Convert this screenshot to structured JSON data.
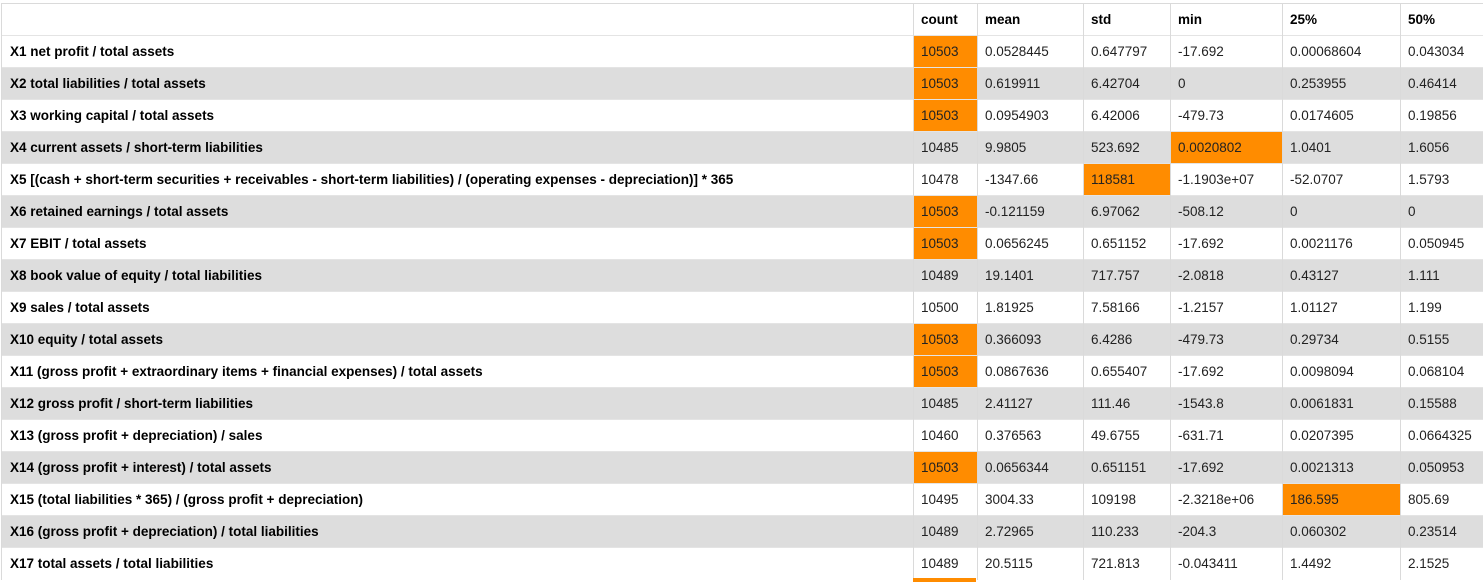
{
  "columns": [
    "count",
    "mean",
    "std",
    "min",
    "25%",
    "50%"
  ],
  "highlight_color": "#ff8c00",
  "row_stripe_color": "#dddddd",
  "rows": [
    {
      "label": "X1 net profit / total assets",
      "values": [
        "10503",
        "0.0528445",
        "0.647797",
        "-17.692",
        "0.00068604",
        "0.043034"
      ],
      "highlight": [
        0
      ]
    },
    {
      "label": "X2 total liabilities / total assets",
      "values": [
        "10503",
        "0.619911",
        "6.42704",
        "0",
        "0.253955",
        "0.46414"
      ],
      "highlight": [
        0
      ]
    },
    {
      "label": "X3 working capital / total assets",
      "values": [
        "10503",
        "0.0954903",
        "6.42006",
        "-479.73",
        "0.0174605",
        "0.19856"
      ],
      "highlight": [
        0
      ]
    },
    {
      "label": "X4 current assets / short-term liabilities",
      "values": [
        "10485",
        "9.9805",
        "523.692",
        "0.0020802",
        "1.0401",
        "1.6056"
      ],
      "highlight": [
        3
      ]
    },
    {
      "label": "X5 [(cash + short-term securities + receivables - short-term liabilities) / (operating expenses - depreciation)] * 365",
      "values": [
        "10478",
        "-1347.66",
        "118581",
        "-1.1903e+07",
        "-52.0707",
        "1.5793"
      ],
      "highlight": [
        2
      ]
    },
    {
      "label": "X6 retained earnings / total assets",
      "values": [
        "10503",
        "-0.121159",
        "6.97062",
        "-508.12",
        "0",
        "0"
      ],
      "highlight": [
        0
      ]
    },
    {
      "label": "X7 EBIT / total assets",
      "values": [
        "10503",
        "0.0656245",
        "0.651152",
        "-17.692",
        "0.0021176",
        "0.050945"
      ],
      "highlight": [
        0
      ]
    },
    {
      "label": "X8 book value of equity / total liabilities",
      "values": [
        "10489",
        "19.1401",
        "717.757",
        "-2.0818",
        "0.43127",
        "1.111"
      ],
      "highlight": []
    },
    {
      "label": "X9 sales / total assets",
      "values": [
        "10500",
        "1.81925",
        "7.58166",
        "-1.2157",
        "1.01127",
        "1.199"
      ],
      "highlight": []
    },
    {
      "label": "X10 equity / total assets",
      "values": [
        "10503",
        "0.366093",
        "6.4286",
        "-479.73",
        "0.29734",
        "0.5155"
      ],
      "highlight": [
        0
      ]
    },
    {
      "label": "X11 (gross profit + extraordinary items + financial expenses) / total assets",
      "values": [
        "10503",
        "0.0867636",
        "0.655407",
        "-17.692",
        "0.0098094",
        "0.068104"
      ],
      "highlight": [
        0
      ]
    },
    {
      "label": "X12 gross profit / short-term liabilities",
      "values": [
        "10485",
        "2.41127",
        "111.46",
        "-1543.8",
        "0.0061831",
        "0.15588"
      ],
      "highlight": []
    },
    {
      "label": "X13 (gross profit + depreciation) / sales",
      "values": [
        "10460",
        "0.376563",
        "49.6755",
        "-631.71",
        "0.0207395",
        "0.0664325"
      ],
      "highlight": []
    },
    {
      "label": "X14 (gross profit + interest) / total assets",
      "values": [
        "10503",
        "0.0656344",
        "0.651151",
        "-17.692",
        "0.0021313",
        "0.050953"
      ],
      "highlight": [
        0
      ]
    },
    {
      "label": "X15 (total liabilities * 365) / (gross profit + depreciation)",
      "values": [
        "10495",
        "3004.33",
        "109198",
        "-2.3218e+06",
        "186.595",
        "805.69"
      ],
      "highlight": [
        4
      ]
    },
    {
      "label": "X16 (gross profit + depreciation) / total liabilities",
      "values": [
        "10489",
        "2.72965",
        "110.233",
        "-204.3",
        "0.060302",
        "0.23514"
      ],
      "highlight": []
    },
    {
      "label": "X17 total assets / total liabilities",
      "values": [
        "10489",
        "20.5115",
        "721.813",
        "-0.043411",
        "1.4492",
        "2.1525"
      ],
      "highlight": []
    }
  ]
}
